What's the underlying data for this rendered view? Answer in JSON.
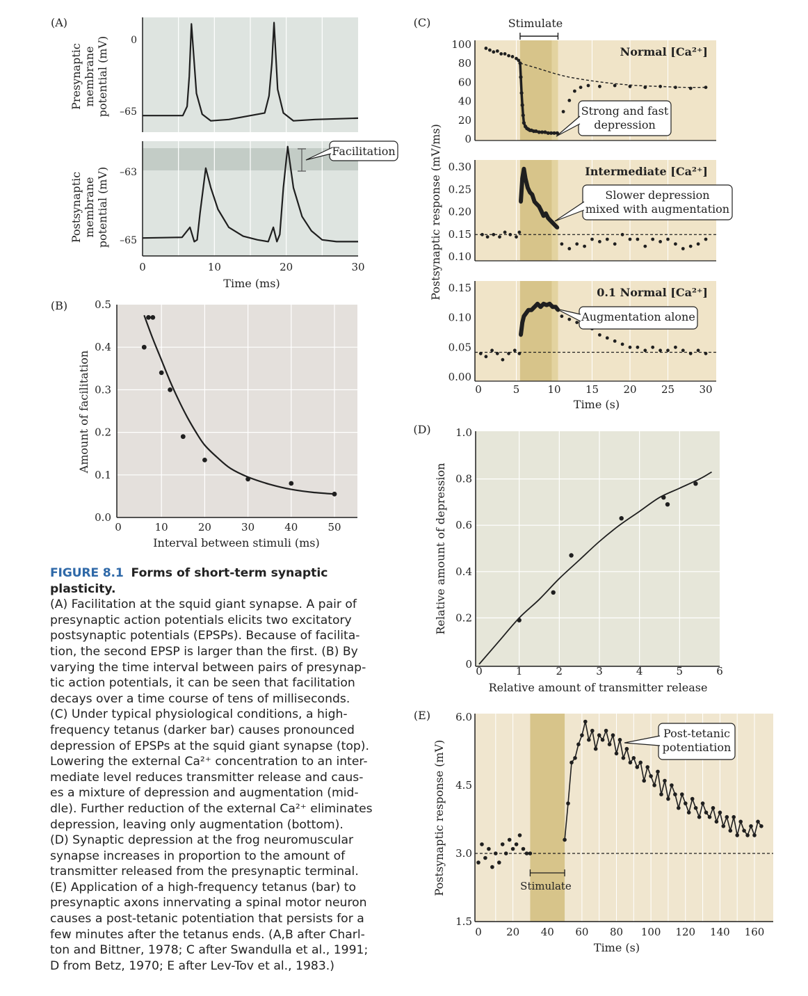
{
  "colors": {
    "panelA": "#dee4e0",
    "panelA_band": "#c3ccc6",
    "panelB": "#e4e0dc",
    "panelD": "#e6e6d9",
    "panelC": "#f0e4c8",
    "panelE": "#f0e6cf",
    "tetanus": "#d7c48a",
    "tetanus_dark": "#c9b46e",
    "ink": "#1f1f1f",
    "grid": "#ffffff"
  },
  "caption": {
    "fig_number": "FIGURE 8.1",
    "fig_title": "Forms of short-term synaptic plasticity.",
    "lines": [
      "(A) Facilitation at the squid giant synapse. A pair of",
      "presynaptic action potentials elicits two excitatory",
      "postsynaptic potentials (EPSPs). Because of facilita-",
      "tion, the second EPSP is larger than the first. (B) By",
      "varying the time interval between pairs of presynap-",
      "tic action potentials, it can be seen that facilitation",
      "decays over a time course of tens of milliseconds.",
      "(C) Under typical physiological conditions, a high-",
      "frequency tetanus (darker bar) causes pronounced",
      "depression of EPSPs at the squid giant synapse (top).",
      "Lowering the external Ca²⁺ concentration to an inter-",
      "mediate level reduces transmitter release and caus-",
      "es a mixture of depression and augmentation (mid-",
      "dle). Further reduction of the external Ca²⁺ eliminates",
      "depression, leaving only augmentation (bottom).",
      "(D) Synaptic depression at the frog neuromuscular",
      "synapse increases in proportion to the amount of",
      "transmitter released from the presynaptic terminal.",
      "(E) Application of a high-frequency tetanus (bar) to",
      "presynaptic axons innervating a spinal motor neuron",
      "causes a post-tetanic potentiation that persists for a",
      "few minutes after the tetanus ends. (A,B after Charl-",
      "ton and Bittner, 1978; C after Swandulla et al., 1991;",
      "D from Betz, 1970; E after Lev-Tov et al., 1983.)"
    ]
  },
  "chart_data": [
    {
      "panel": "(A)",
      "type": "line",
      "xlabel": "Time (ms)",
      "xticks": [
        "0",
        "10",
        "20",
        "30"
      ],
      "xlim": [
        0,
        30
      ],
      "subplots": [
        {
          "ylabel": [
            "Presynaptic",
            "membrane",
            "potential (mV)"
          ],
          "yticks": [
            "0",
            "–65"
          ],
          "x": [
            0,
            5.6,
            6.2,
            6.5,
            6.8,
            7.5,
            8.3,
            9.5,
            12,
            17,
            17.6,
            18,
            18.3,
            18.8,
            19.6,
            21,
            24,
            30
          ],
          "y": [
            -65,
            -65,
            -58,
            -35,
            5,
            -48,
            -64,
            -69,
            -68,
            -63,
            -50,
            -25,
            6,
            -45,
            -63,
            -69,
            -68,
            -67
          ]
        },
        {
          "ylabel": [
            "Postsynaptic",
            "membrane",
            "potential (mV)"
          ],
          "yticks": [
            "–63",
            "–65"
          ],
          "annotation": "Facilitation",
          "x": [
            0,
            5.5,
            6.6,
            7.2,
            7.6,
            8.0,
            8.8,
            9.5,
            10.5,
            12,
            14,
            16,
            17.5,
            18.2,
            18.7,
            19.1,
            19.6,
            20.2,
            21,
            22.2,
            23.5,
            25,
            27,
            30
          ],
          "y": [
            -65,
            -64.98,
            -64.7,
            -65.1,
            -65.05,
            -64.3,
            -63.05,
            -63.6,
            -64.2,
            -64.7,
            -64.95,
            -65.05,
            -65.1,
            -64.7,
            -65.1,
            -64.9,
            -63.6,
            -62.45,
            -63.6,
            -64.4,
            -64.8,
            -65.05,
            -65.1,
            -65.1
          ]
        }
      ]
    },
    {
      "panel": "(B)",
      "type": "scatter",
      "xlabel": "Interval between stimuli (ms)",
      "ylabel": "Amount of facilitation",
      "xlim": [
        0,
        50
      ],
      "ylim": [
        0,
        0.5
      ],
      "xticks": [
        "0",
        "10",
        "20",
        "30",
        "40",
        "50"
      ],
      "yticks": [
        "0.0",
        "0.1",
        "0.2",
        "0.3",
        "0.4",
        "0.5"
      ],
      "points_x": [
        6,
        7,
        8,
        10,
        12,
        15,
        20,
        30,
        40,
        50
      ],
      "points_y": [
        0.4,
        0.47,
        0.47,
        0.34,
        0.3,
        0.19,
        0.135,
        0.09,
        0.08,
        0.055
      ],
      "fit_x": [
        6,
        8,
        10,
        12,
        14,
        16,
        18,
        20,
        23,
        26,
        30,
        35,
        40,
        45,
        50
      ],
      "fit_y": [
        0.475,
        0.42,
        0.37,
        0.32,
        0.275,
        0.235,
        0.2,
        0.17,
        0.14,
        0.115,
        0.095,
        0.078,
        0.066,
        0.059,
        0.055
      ]
    },
    {
      "panel": "(C)",
      "type": "scatter",
      "xlabel": "Time (s)",
      "ylabel": "Postsynaptic response (mV/ms)",
      "xlim": [
        0,
        30
      ],
      "xticks": [
        "0",
        "5",
        "10",
        "15",
        "20",
        "25",
        "30"
      ],
      "stimulate_label": "Stimulate",
      "stimulate_range": [
        5.5,
        10.5
      ],
      "subplots": [
        {
          "title": "Normal [Ca²⁺]",
          "yticks": [
            "100",
            "80",
            "60",
            "40",
            "20",
            "0"
          ],
          "ylim": [
            0,
            100
          ],
          "annotation": [
            "Strong and fast",
            "depression"
          ],
          "before_x": [
            1,
            1.5,
            2,
            2.5,
            3,
            3.5,
            4,
            4.5,
            5,
            5.3
          ],
          "before_y": [
            96,
            94,
            92,
            93,
            90,
            90,
            88,
            87,
            85,
            83
          ],
          "during_x": [
            5.5,
            5.6,
            5.7,
            5.8,
            5.9,
            6.0,
            6.2,
            6.4,
            6.6,
            6.8,
            7.0,
            7.3,
            7.6,
            8.0,
            8.4,
            8.8,
            9.2,
            9.6,
            10.0,
            10.4
          ],
          "during_y": [
            80,
            65,
            48,
            35,
            24,
            16,
            12,
            10,
            9,
            8,
            8,
            7,
            7,
            6,
            6,
            6,
            5,
            5,
            5,
            5
          ],
          "after_x": [
            11.2,
            12,
            12.7,
            13.5,
            14.5,
            16,
            18,
            20,
            22,
            24,
            26,
            28,
            30
          ],
          "after_y": [
            28,
            40,
            50,
            54,
            56,
            55,
            56,
            55,
            54,
            55,
            54,
            53,
            54
          ],
          "fit_x": [
            5.5,
            8,
            10,
            12,
            15,
            18,
            21,
            24,
            27,
            30
          ],
          "fit_y": [
            80,
            74,
            69,
            65,
            61,
            58,
            56,
            55,
            54,
            54
          ]
        },
        {
          "title": "Intermediate [Ca²⁺]",
          "yticks": [
            "0.30",
            "0.25",
            "0.20",
            "0.15",
            "0.10"
          ],
          "ylim": [
            0.1,
            0.3
          ],
          "annotation": [
            "Slower depression",
            "mixed with augmentation"
          ],
          "before_x": [
            0.5,
            1.2,
            2,
            2.8,
            3.5,
            4.2,
            5,
            5.4
          ],
          "before_y": [
            0.15,
            0.145,
            0.15,
            0.145,
            0.155,
            0.15,
            0.145,
            0.155
          ],
          "during_x": [
            5.6,
            5.8,
            6.0,
            6.2,
            6.5,
            6.8,
            7.1,
            7.4,
            7.7,
            8.0,
            8.3,
            8.6,
            8.9,
            9.2,
            9.5,
            9.8,
            10.1,
            10.4
          ],
          "during_y": [
            0.22,
            0.27,
            0.29,
            0.27,
            0.25,
            0.24,
            0.235,
            0.22,
            0.215,
            0.21,
            0.2,
            0.19,
            0.195,
            0.185,
            0.18,
            0.175,
            0.17,
            0.165
          ],
          "after_x": [
            11,
            12,
            13,
            14,
            15,
            16,
            17,
            18,
            19,
            20,
            21,
            22,
            23,
            24,
            25,
            26,
            27,
            28,
            29,
            30
          ],
          "after_y": [
            0.13,
            0.12,
            0.13,
            0.125,
            0.14,
            0.135,
            0.14,
            0.13,
            0.15,
            0.14,
            0.14,
            0.125,
            0.14,
            0.135,
            0.14,
            0.13,
            0.12,
            0.125,
            0.13,
            0.14
          ],
          "baseline": 0.15
        },
        {
          "title": "0.1 Normal [Ca²⁺]",
          "yticks": [
            "0.15",
            "0.10",
            "0.05",
            "0.00"
          ],
          "ylim": [
            0,
            0.15
          ],
          "annotation": [
            "Augmentation alone"
          ],
          "before_x": [
            0.3,
            1,
            1.8,
            2.5,
            3.2,
            4,
            4.8,
            5.4
          ],
          "before_y": [
            0.04,
            0.035,
            0.045,
            0.04,
            0.03,
            0.04,
            0.045,
            0.04
          ],
          "during_x": [
            5.6,
            5.8,
            6.0,
            6.3,
            6.6,
            7.0,
            7.4,
            7.8,
            8.2,
            8.6,
            9.0,
            9.4,
            9.8,
            10.2,
            10.5
          ],
          "during_y": [
            0.07,
            0.09,
            0.1,
            0.105,
            0.11,
            0.11,
            0.115,
            0.12,
            0.115,
            0.12,
            0.118,
            0.12,
            0.115,
            0.115,
            0.11
          ],
          "after_x": [
            11,
            12,
            13,
            14,
            15,
            16,
            17,
            18,
            19,
            20,
            21,
            22,
            23,
            24,
            25,
            26,
            27,
            28,
            29,
            30
          ],
          "after_y": [
            0.1,
            0.095,
            0.09,
            0.085,
            0.08,
            0.07,
            0.065,
            0.06,
            0.055,
            0.05,
            0.05,
            0.045,
            0.05,
            0.045,
            0.045,
            0.05,
            0.045,
            0.04,
            0.045,
            0.04
          ],
          "baseline": 0.042
        }
      ]
    },
    {
      "panel": "(D)",
      "type": "scatter",
      "xlabel": "Relative amount of transmitter release",
      "ylabel": "Relative amount of depression",
      "xlim": [
        0,
        6
      ],
      "ylim": [
        0,
        1.0
      ],
      "xticks": [
        "0",
        "1",
        "2",
        "3",
        "4",
        "5",
        "6"
      ],
      "yticks": [
        "0",
        "0.2",
        "0.4",
        "0.6",
        "0.8",
        "1.0"
      ],
      "points_x": [
        1.0,
        1.85,
        2.3,
        3.55,
        4.6,
        4.7,
        5.4
      ],
      "points_y": [
        0.19,
        0.31,
        0.47,
        0.63,
        0.72,
        0.69,
        0.78
      ],
      "fit_x": [
        0,
        0.5,
        1,
        1.5,
        2,
        2.5,
        3,
        3.5,
        4,
        4.5,
        5,
        5.5,
        5.8
      ],
      "fit_y": [
        0,
        0.1,
        0.2,
        0.28,
        0.37,
        0.45,
        0.53,
        0.6,
        0.66,
        0.72,
        0.76,
        0.8,
        0.83
      ]
    },
    {
      "panel": "(E)",
      "type": "line",
      "xlabel": "Time (s)",
      "ylabel": "Postsynaptic response (mV)",
      "xlim": [
        0,
        165
      ],
      "ylim": [
        1.5,
        6.0
      ],
      "xticks": [
        "0",
        "20",
        "40",
        "60",
        "80",
        "100",
        "120",
        "140",
        "160"
      ],
      "yticks": [
        "1.5",
        "3.0",
        "4.5",
        "6.0"
      ],
      "stimulate_label": "Stimulate",
      "stimulate_range": [
        30,
        50
      ],
      "annotation": [
        "Post-tetanic",
        "potentiation"
      ],
      "baseline": 3.0,
      "before_x": [
        0,
        2,
        4,
        6,
        8,
        10,
        12,
        14,
        16,
        18,
        20,
        22,
        24,
        26,
        28,
        30
      ],
      "before_y": [
        2.8,
        3.2,
        2.9,
        3.1,
        2.7,
        3.0,
        2.8,
        3.2,
        3.0,
        3.3,
        3.1,
        3.2,
        3.4,
        3.1,
        3.0,
        3.0
      ],
      "after_x": [
        50,
        52,
        54,
        56,
        58,
        60,
        62,
        64,
        66,
        68,
        70,
        72,
        74,
        76,
        78,
        80,
        82,
        84,
        86,
        88,
        90,
        92,
        94,
        96,
        98,
        100,
        102,
        104,
        106,
        108,
        110,
        112,
        114,
        116,
        118,
        120,
        122,
        124,
        126,
        128,
        130,
        132,
        134,
        136,
        138,
        140,
        142,
        144,
        146,
        148,
        150,
        152,
        154,
        156,
        158,
        160,
        162,
        164
      ],
      "after_y": [
        3.3,
        4.1,
        5.0,
        5.1,
        5.4,
        5.6,
        5.9,
        5.5,
        5.7,
        5.3,
        5.6,
        5.5,
        5.7,
        5.4,
        5.6,
        5.2,
        5.5,
        5.1,
        5.3,
        5.0,
        5.1,
        4.9,
        5.0,
        4.6,
        4.9,
        4.7,
        4.5,
        4.8,
        4.3,
        4.6,
        4.2,
        4.5,
        4.3,
        4.0,
        4.3,
        4.1,
        3.9,
        4.2,
        4.0,
        3.8,
        4.1,
        3.9,
        3.8,
        4.0,
        3.7,
        3.9,
        3.6,
        3.8,
        3.5,
        3.8,
        3.4,
        3.7,
        3.5,
        3.4,
        3.6,
        3.4,
        3.7,
        3.6
      ]
    }
  ]
}
